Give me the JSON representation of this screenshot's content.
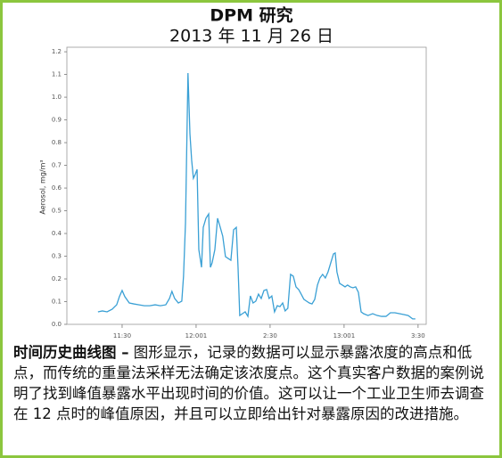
{
  "chart_data": {
    "type": "line",
    "title": "DPM 研究",
    "subtitle": "2013 年 11 月 26 日",
    "ylabel": "Aerosol, mg/m³",
    "xlim": [
      667.6,
      813.3
    ],
    "ylim": [
      0,
      1.22
    ],
    "xticks": [
      {
        "value": 690,
        "label": "11:30"
      },
      {
        "value": 720,
        "label": "12:001"
      },
      {
        "value": 750,
        "label": "2:30"
      },
      {
        "value": 780,
        "label": "13:001"
      },
      {
        "value": 810,
        "label": "3:30"
      }
    ],
    "yticks": [
      {
        "value": 0,
        "label": "0.0"
      },
      0.1,
      0.2,
      0.3,
      0.4,
      0.5,
      0.6,
      0.7,
      0.8,
      0.9,
      {
        "value": 1,
        "label": "1.0"
      },
      1.1,
      1.2
    ],
    "grid": false,
    "x": [
      680.2,
      682.0,
      683.9,
      686.0,
      687.8,
      688.9,
      690.0,
      691.1,
      692.9,
      694.7,
      696.9,
      699.0,
      701.2,
      703.4,
      705.5,
      707.7,
      709.2,
      710.2,
      711.3,
      712.8,
      714.2,
      714.9,
      715.7,
      716.7,
      717.5,
      718.2,
      718.9,
      719.6,
      720.4,
      721.1,
      722.2,
      722.9,
      724.0,
      725.1,
      725.8,
      726.5,
      727.6,
      728.7,
      729.8,
      730.8,
      731.9,
      733.0,
      734.1,
      735.2,
      736.3,
      737.0,
      737.7,
      738.8,
      739.9,
      741.0,
      742.0,
      743.1,
      744.2,
      745.3,
      746.4,
      747.5,
      748.6,
      749.6,
      750.7,
      751.8,
      752.9,
      754.0,
      755.1,
      756.1,
      757.2,
      758.3,
      759.4,
      760.5,
      761.6,
      762.6,
      763.7,
      764.8,
      765.9,
      767.0,
      768.1,
      769.2,
      770.2,
      771.3,
      772.4,
      773.5,
      774.6,
      775.7,
      776.4,
      777.1,
      778.2,
      779.3,
      780.4,
      781.4,
      782.5,
      783.6,
      784.7,
      785.8,
      786.9,
      787.9,
      789.7,
      791.6,
      793.4,
      795.2,
      797.0,
      798.8,
      800.6,
      802.4,
      804.2,
      806.0,
      807.8,
      808.9
    ],
    "series": [
      {
        "color": "#3aa0d5",
        "values": [
          0.055,
          0.059,
          0.055,
          0.067,
          0.086,
          0.122,
          0.149,
          0.122,
          0.094,
          0.09,
          0.086,
          0.082,
          0.082,
          0.086,
          0.082,
          0.086,
          0.114,
          0.145,
          0.114,
          0.094,
          0.102,
          0.212,
          0.447,
          1.106,
          0.839,
          0.722,
          0.643,
          0.659,
          0.682,
          0.329,
          0.251,
          0.427,
          0.467,
          0.486,
          0.251,
          0.271,
          0.329,
          0.467,
          0.427,
          0.388,
          0.298,
          0.29,
          0.282,
          0.416,
          0.427,
          0.251,
          0.039,
          0.047,
          0.055,
          0.035,
          0.125,
          0.094,
          0.102,
          0.133,
          0.114,
          0.149,
          0.153,
          0.114,
          0.125,
          0.055,
          0.082,
          0.078,
          0.094,
          0.059,
          0.071,
          0.22,
          0.212,
          0.165,
          0.153,
          0.133,
          0.11,
          0.102,
          0.094,
          0.09,
          0.11,
          0.173,
          0.204,
          0.22,
          0.204,
          0.231,
          0.271,
          0.31,
          0.314,
          0.231,
          0.18,
          0.173,
          0.165,
          0.173,
          0.165,
          0.161,
          0.165,
          0.141,
          0.055,
          0.047,
          0.039,
          0.047,
          0.039,
          0.035,
          0.035,
          0.051,
          0.051,
          0.047,
          0.043,
          0.039,
          0.024,
          0.024
        ]
      }
    ]
  },
  "caption": {
    "heading": "时间历史曲线图 –",
    "text": "图形显示，记录的数据可以显示暴露浓度的高点和低点，而传统的重量法采样无法确定该浓度点。这个真实客户数据的案例说明了找到峰值暴露水平出现时间的价值。这可以让一个工业卫生师去调查在 12 点时的峰值原因，并且可以立即给出针对暴露原因的改进措施。"
  }
}
